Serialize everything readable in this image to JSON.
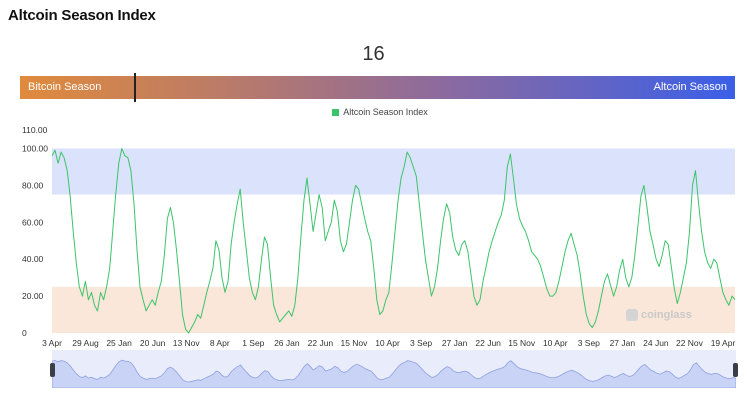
{
  "page": {
    "title": "Altcoin Season Index"
  },
  "current": {
    "value": "16"
  },
  "season_bar": {
    "left_label": "Bitcoin Season",
    "right_label": "Altcoin Season",
    "colors": {
      "left": "#e08a3c",
      "right": "#3b5fe8"
    }
  },
  "watermark": {
    "text": "coinglass"
  },
  "chart_data": {
    "type": "line",
    "legend": [
      "Altcoin Season Index"
    ],
    "series_color": "#3cc46a",
    "y_ticks": [
      "0",
      "20.00",
      "40.00",
      "60.00",
      "80.00",
      "100.00",
      "110.00"
    ],
    "ylim": [
      0,
      110
    ],
    "x_ticks": [
      "3 Apr",
      "29 Aug",
      "25 Jan",
      "20 Jun",
      "13 Nov",
      "8 Apr",
      "1 Sep",
      "26 Jan",
      "22 Jun",
      "15 Nov",
      "10 Apr",
      "3 Sep",
      "27 Jan",
      "22 Jun",
      "15 Nov",
      "10 Apr",
      "3 Sep",
      "27 Jan",
      "24 Jun",
      "22 Nov",
      "19 Apr"
    ],
    "bands": [
      {
        "name": "altcoin",
        "from": 75,
        "to": 100,
        "color": "#dbe2fb"
      },
      {
        "name": "bitcoin",
        "from": 0,
        "to": 25,
        "color": "#fbe6da"
      }
    ],
    "series": [
      {
        "values": [
          96,
          99,
          92,
          98,
          95,
          88,
          74,
          55,
          38,
          25,
          20,
          28,
          18,
          22,
          15,
          12,
          22,
          18,
          25,
          35,
          55,
          75,
          92,
          100,
          96,
          95,
          88,
          70,
          45,
          25,
          18,
          12,
          15,
          18,
          15,
          22,
          28,
          42,
          62,
          68,
          60,
          45,
          28,
          10,
          2,
          0,
          3,
          6,
          10,
          8,
          15,
          22,
          28,
          35,
          50,
          45,
          30,
          22,
          28,
          48,
          60,
          70,
          78,
          60,
          45,
          30,
          22,
          18,
          25,
          40,
          52,
          48,
          30,
          15,
          10,
          6,
          8,
          10,
          12,
          9,
          15,
          30,
          52,
          72,
          84,
          70,
          55,
          65,
          75,
          68,
          50,
          55,
          60,
          72,
          66,
          50,
          44,
          48,
          60,
          72,
          80,
          78,
          70,
          62,
          55,
          50,
          35,
          18,
          10,
          12,
          18,
          22,
          38,
          55,
          72,
          84,
          90,
          98,
          95,
          90,
          85,
          70,
          55,
          40,
          30,
          20,
          25,
          35,
          50,
          62,
          70,
          65,
          52,
          45,
          42,
          48,
          50,
          44,
          32,
          20,
          15,
          18,
          28,
          36,
          44,
          50,
          55,
          60,
          64,
          72,
          90,
          97,
          84,
          70,
          62,
          58,
          55,
          50,
          44,
          42,
          40,
          36,
          30,
          24,
          20,
          20,
          22,
          28,
          36,
          44,
          50,
          54,
          48,
          42,
          32,
          20,
          10,
          5,
          3,
          6,
          12,
          20,
          28,
          32,
          26,
          20,
          25,
          34,
          40,
          30,
          25,
          30,
          42,
          58,
          74,
          80,
          68,
          55,
          48,
          40,
          36,
          42,
          50,
          48,
          36,
          24,
          16,
          22,
          30,
          38,
          55,
          80,
          88,
          70,
          55,
          44,
          38,
          35,
          40,
          38,
          30,
          22,
          18,
          15,
          20,
          18
        ]
      }
    ]
  }
}
